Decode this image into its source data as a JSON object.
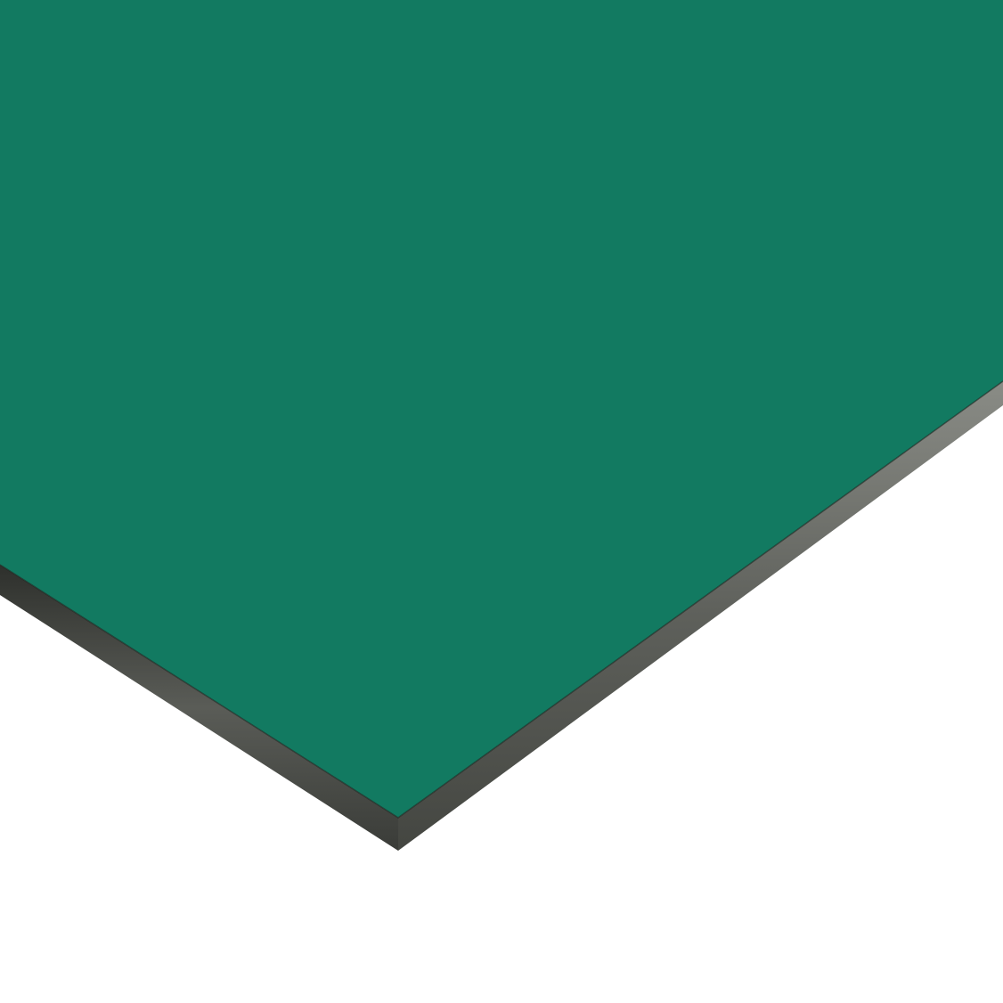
{
  "image": {
    "subject": "panel",
    "colors": {
      "background": "#ffffff",
      "panel_face": "#127a61",
      "edge_dark": "#3a3c38",
      "edge_light": "#6b6d68"
    }
  }
}
